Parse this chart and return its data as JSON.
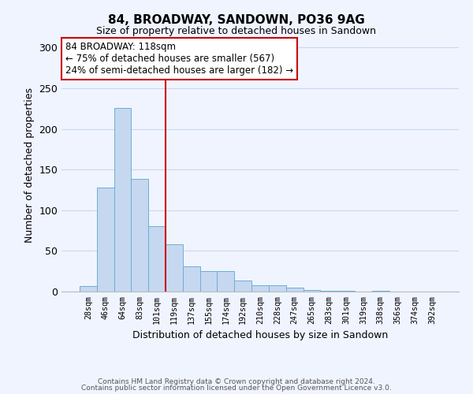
{
  "title": "84, BROADWAY, SANDOWN, PO36 9AG",
  "subtitle": "Size of property relative to detached houses in Sandown",
  "xlabel": "Distribution of detached houses by size in Sandown",
  "ylabel": "Number of detached properties",
  "bar_labels": [
    "28sqm",
    "46sqm",
    "64sqm",
    "83sqm",
    "101sqm",
    "119sqm",
    "137sqm",
    "155sqm",
    "174sqm",
    "192sqm",
    "210sqm",
    "228sqm",
    "247sqm",
    "265sqm",
    "283sqm",
    "301sqm",
    "319sqm",
    "338sqm",
    "356sqm",
    "374sqm",
    "392sqm"
  ],
  "bar_values": [
    7,
    128,
    226,
    139,
    80,
    58,
    31,
    25,
    25,
    14,
    8,
    8,
    5,
    2,
    1,
    1,
    0,
    1,
    0,
    0,
    0
  ],
  "bar_color": "#c5d8f0",
  "bar_edge_color": "#6baed6",
  "ylim": [
    0,
    310
  ],
  "yticks": [
    0,
    50,
    100,
    150,
    200,
    250,
    300
  ],
  "property_line_x": 4.5,
  "property_line_color": "#cc0000",
  "annotation_text": "84 BROADWAY: 118sqm\n← 75% of detached houses are smaller (567)\n24% of semi-detached houses are larger (182) →",
  "annotation_box_color": "#ffffff",
  "annotation_box_edge_color": "#cc0000",
  "footer_line1": "Contains HM Land Registry data © Crown copyright and database right 2024.",
  "footer_line2": "Contains public sector information licensed under the Open Government Licence v3.0.",
  "background_color": "#f0f4ff",
  "grid_color": "#c8d8ef"
}
